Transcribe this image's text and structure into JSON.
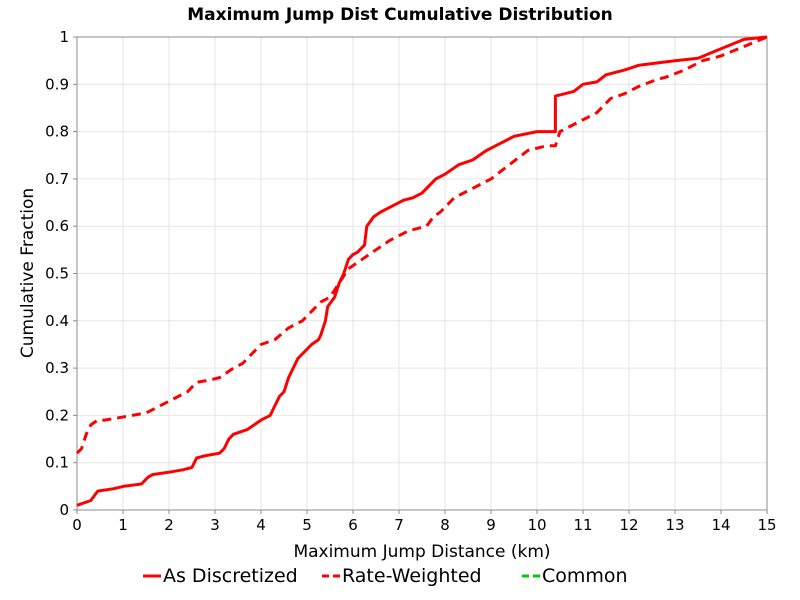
{
  "chart_data": {
    "type": "line",
    "title": "Maximum Jump Dist Cumulative Distribution",
    "xlabel": "Maximum Jump Distance (km)",
    "ylabel": "Cumulative Fraction",
    "xlim": [
      0,
      15
    ],
    "ylim": [
      0,
      1
    ],
    "xticks": [
      "0",
      "1",
      "2",
      "3",
      "4",
      "5",
      "6",
      "7",
      "8",
      "9",
      "10",
      "11",
      "12",
      "13",
      "14",
      "15"
    ],
    "yticks": [
      "0",
      "0.1",
      "0.2",
      "0.3",
      "0.4",
      "0.5",
      "0.6",
      "0.7",
      "0.8",
      "0.9",
      "1"
    ],
    "grid": true,
    "legend_position": "bottom",
    "series": [
      {
        "name": "As Discretized",
        "color": "#ff0000",
        "style": "solid",
        "x": [
          0,
          0.3,
          0.45,
          0.8,
          1.0,
          1.4,
          1.55,
          1.65,
          2.0,
          2.3,
          2.5,
          2.55,
          2.6,
          2.8,
          3.1,
          3.2,
          3.3,
          3.4,
          3.7,
          3.85,
          4.0,
          4.2,
          4.3,
          4.4,
          4.5,
          4.6,
          4.7,
          4.8,
          5.0,
          5.1,
          5.25,
          5.3,
          5.4,
          5.45,
          5.6,
          5.7,
          5.8,
          5.9,
          6.0,
          6.1,
          6.25,
          6.3,
          6.45,
          6.6,
          6.8,
          7.0,
          7.1,
          7.3,
          7.5,
          7.8,
          8.0,
          8.3,
          8.6,
          8.9,
          9.1,
          9.5,
          10.0,
          10.4,
          10.4,
          10.8,
          11.0,
          11.3,
          11.5,
          11.9,
          12.2,
          12.6,
          13.0,
          13.5,
          14.0,
          14.5,
          15.0
        ],
        "y": [
          0.01,
          0.02,
          0.04,
          0.045,
          0.05,
          0.055,
          0.07,
          0.075,
          0.08,
          0.085,
          0.09,
          0.1,
          0.11,
          0.115,
          0.12,
          0.13,
          0.15,
          0.16,
          0.17,
          0.18,
          0.19,
          0.2,
          0.22,
          0.24,
          0.25,
          0.28,
          0.3,
          0.32,
          0.34,
          0.35,
          0.36,
          0.37,
          0.4,
          0.43,
          0.45,
          0.48,
          0.5,
          0.53,
          0.54,
          0.545,
          0.56,
          0.6,
          0.62,
          0.63,
          0.64,
          0.65,
          0.655,
          0.66,
          0.67,
          0.7,
          0.71,
          0.73,
          0.74,
          0.76,
          0.77,
          0.79,
          0.8,
          0.8,
          0.875,
          0.885,
          0.9,
          0.905,
          0.92,
          0.93,
          0.94,
          0.945,
          0.95,
          0.955,
          0.975,
          0.995,
          1.0
        ]
      },
      {
        "name": "Rate-Weighted",
        "color": "#ff0000",
        "style": "dashed",
        "x": [
          0,
          0.1,
          0.2,
          0.3,
          0.45,
          0.6,
          0.9,
          1.2,
          1.5,
          1.8,
          2.1,
          2.4,
          2.6,
          2.9,
          3.1,
          3.4,
          3.6,
          3.8,
          4.0,
          4.3,
          4.6,
          4.9,
          5.1,
          5.3,
          5.5,
          5.7,
          5.9,
          6.2,
          6.5,
          6.8,
          7.0,
          7.2,
          7.6,
          7.75,
          7.9,
          8.2,
          8.6,
          9.0,
          9.4,
          9.8,
          10.2,
          10.4,
          10.5,
          10.9,
          11.1,
          11.3,
          11.4,
          11.6,
          11.9,
          12.2,
          12.6,
          12.8,
          13.2,
          13.6,
          14.0,
          14.5,
          15.0
        ],
        "y": [
          0.12,
          0.13,
          0.16,
          0.18,
          0.19,
          0.19,
          0.195,
          0.2,
          0.205,
          0.22,
          0.235,
          0.25,
          0.27,
          0.275,
          0.28,
          0.3,
          0.31,
          0.33,
          0.35,
          0.36,
          0.385,
          0.4,
          0.42,
          0.44,
          0.45,
          0.48,
          0.51,
          0.53,
          0.55,
          0.57,
          0.58,
          0.59,
          0.6,
          0.62,
          0.63,
          0.66,
          0.68,
          0.7,
          0.73,
          0.76,
          0.77,
          0.77,
          0.8,
          0.82,
          0.83,
          0.84,
          0.85,
          0.87,
          0.88,
          0.895,
          0.91,
          0.915,
          0.93,
          0.95,
          0.96,
          0.98,
          1.0
        ]
      },
      {
        "name": "Common",
        "color": "#00cc00",
        "style": "dashed",
        "x": [],
        "y": []
      }
    ]
  }
}
